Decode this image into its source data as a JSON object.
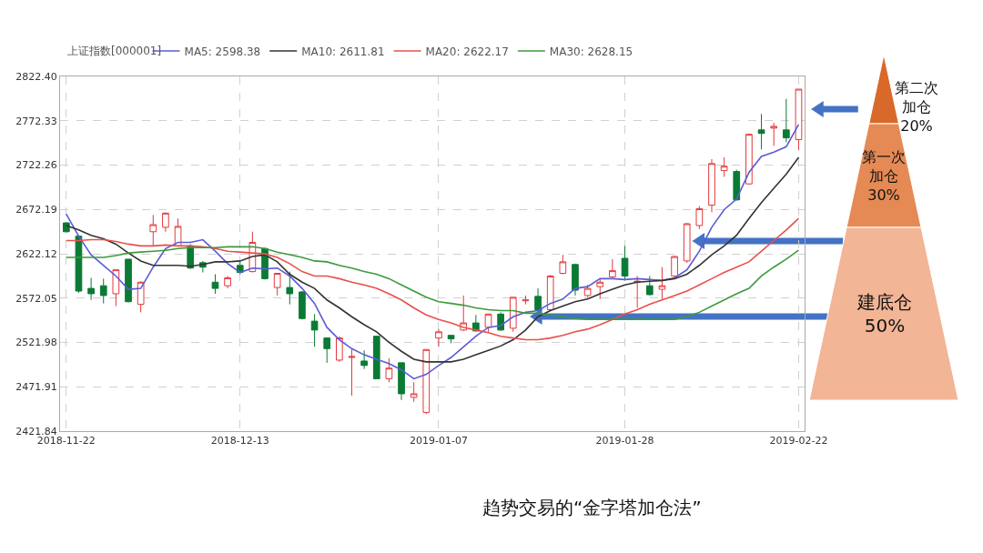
{
  "chart_data": [
    {
      "type": "candlestick",
      "title": "上证指数[000001]",
      "categories": [
        "2018-11-22",
        null,
        null,
        null,
        null,
        null,
        null,
        null,
        null,
        null,
        null,
        null,
        null,
        null,
        "2018-12-13",
        null,
        null,
        null,
        null,
        null,
        null,
        null,
        null,
        null,
        null,
        null,
        null,
        null,
        null,
        null,
        "2019-01-07",
        null,
        null,
        null,
        null,
        null,
        null,
        null,
        null,
        null,
        null,
        null,
        null,
        null,
        null,
        "2019-01-28",
        null,
        null,
        null,
        null,
        null,
        null,
        null,
        null,
        null,
        null,
        null,
        null,
        null,
        "2019-02-22"
      ],
      "ohlc": [
        [
          2657,
          2658,
          2646,
          2647
        ],
        [
          2642,
          2643,
          2578,
          2580
        ],
        [
          2583,
          2595,
          2570,
          2577
        ],
        [
          2586,
          2594,
          2566,
          2575
        ],
        [
          2577,
          2604,
          2563,
          2604
        ],
        [
          2616,
          2616,
          2567,
          2568
        ],
        [
          2565,
          2591,
          2556,
          2590
        ],
        [
          2647,
          2666,
          2631,
          2655
        ],
        [
          2652,
          2669,
          2647,
          2668
        ],
        [
          2631,
          2662,
          2631,
          2653
        ],
        [
          2631,
          2633,
          2605,
          2606
        ],
        [
          2612,
          2614,
          2601,
          2607
        ],
        [
          2590,
          2599,
          2577,
          2583
        ],
        [
          2586,
          2597,
          2583,
          2595
        ],
        [
          2609,
          2613,
          2599,
          2601
        ],
        [
          2602,
          2647,
          2601,
          2635
        ],
        [
          2628,
          2629,
          2593,
          2594
        ],
        [
          2584,
          2600,
          2575,
          2600
        ],
        [
          2584,
          2602,
          2565,
          2577
        ],
        [
          2579,
          2580,
          2548,
          2549
        ],
        [
          2546,
          2554,
          2517,
          2536
        ],
        [
          2527,
          2527,
          2499,
          2515
        ],
        [
          2502,
          2529,
          2500,
          2527
        ],
        [
          2505,
          2515,
          2462,
          2506
        ],
        [
          2501,
          2513,
          2492,
          2496
        ],
        [
          2529,
          2529,
          2481,
          2481
        ],
        [
          2481,
          2504,
          2477,
          2493
        ],
        [
          2499,
          2499,
          2457,
          2464
        ],
        [
          2460,
          2477,
          2455,
          2464
        ],
        [
          2443,
          2514,
          2441,
          2514
        ],
        [
          2527,
          2537,
          2517,
          2534
        ],
        [
          2530,
          2530,
          2521,
          2526
        ],
        [
          2536,
          2575,
          2535,
          2544
        ],
        [
          2544,
          2553,
          2534,
          2535
        ],
        [
          2539,
          2554,
          2534,
          2554
        ],
        [
          2554,
          2556,
          2535,
          2536
        ],
        [
          2538,
          2573,
          2534,
          2573
        ],
        [
          2569,
          2575,
          2565,
          2570
        ],
        [
          2574,
          2583,
          2559,
          2559
        ],
        [
          2559,
          2598,
          2559,
          2597
        ],
        [
          2600,
          2621,
          2599,
          2613
        ],
        [
          2610,
          2611,
          2575,
          2581
        ],
        [
          2575,
          2587,
          2573,
          2583
        ],
        [
          2585,
          2594,
          2571,
          2590
        ],
        [
          2596,
          2616,
          2594,
          2603
        ],
        [
          2617,
          2631,
          2592,
          2597
        ],
        [
          2590,
          2597,
          2561,
          2591
        ],
        [
          2586,
          2597,
          2575,
          2576
        ],
        [
          2582,
          2607,
          2571,
          2586
        ],
        [
          2597,
          2620,
          2596,
          2619
        ],
        [
          2614,
          2657,
          2612,
          2656
        ],
        [
          2654,
          2676,
          2650,
          2673
        ],
        [
          2677,
          2729,
          2669,
          2724
        ],
        [
          2716,
          2731,
          2709,
          2721
        ],
        [
          2715,
          2717,
          2682,
          2683
        ],
        [
          2701,
          2758,
          2700,
          2757
        ],
        [
          2762,
          2780,
          2740,
          2758
        ],
        [
          2764,
          2770,
          2744,
          2766
        ],
        [
          2762,
          2797,
          2748,
          2753
        ],
        [
          2751,
          2808,
          2739,
          2808
        ]
      ],
      "series": [
        {
          "name": "MA5: 2598.38",
          "type": "line",
          "color": "#5b5bd6",
          "values": [
            2667,
            2642,
            2621,
            2609,
            2597,
            2582,
            2583,
            2607,
            2628,
            2635,
            2635,
            2638,
            2625,
            2611,
            2601,
            2606,
            2605,
            2606,
            2597,
            2583,
            2566,
            2539,
            2525,
            2515,
            2508,
            2503,
            2498,
            2491,
            2481,
            2486,
            2496,
            2505,
            2517,
            2529,
            2539,
            2541,
            2551,
            2556,
            2558,
            2566,
            2571,
            2583,
            2585,
            2594,
            2594,
            2593,
            2594,
            2593,
            2592,
            2595,
            2604,
            2625,
            2652,
            2672,
            2684,
            2714,
            2732,
            2737,
            2743,
            2768
          ]
        },
        {
          "name": "MA10: 2611.81",
          "type": "line",
          "color": "#333333",
          "values": [
            2654,
            2649,
            2643,
            2639,
            2633,
            2623,
            2614,
            2609,
            2609,
            2609,
            2608,
            2610,
            2613,
            2613,
            2614,
            2619,
            2621,
            2613,
            2599,
            2590,
            2583,
            2570,
            2561,
            2551,
            2542,
            2534,
            2522,
            2512,
            2503,
            2500,
            2500,
            2500,
            2503,
            2508,
            2513,
            2518,
            2525,
            2536,
            2551,
            2558,
            2563,
            2568,
            2571,
            2577,
            2582,
            2587,
            2590,
            2591,
            2592,
            2594,
            2599,
            2609,
            2621,
            2631,
            2643,
            2662,
            2680,
            2696,
            2712,
            2731
          ]
        },
        {
          "name": "MA20: 2622.17",
          "type": "line",
          "color": "#e8504a",
          "values": [
            2637,
            2637,
            2638,
            2638,
            2636,
            2633,
            2631,
            2631,
            2632,
            2631,
            2631,
            2630,
            2628,
            2625,
            2624,
            2623,
            2622,
            2618,
            2611,
            2602,
            2597,
            2597,
            2594,
            2590,
            2587,
            2583,
            2577,
            2570,
            2561,
            2553,
            2548,
            2544,
            2539,
            2536,
            2533,
            2529,
            2527,
            2525,
            2525,
            2527,
            2530,
            2534,
            2537,
            2542,
            2548,
            2554,
            2559,
            2565,
            2570,
            2575,
            2580,
            2587,
            2594,
            2601,
            2607,
            2613,
            2625,
            2637,
            2649,
            2662
          ]
        },
        {
          "name": "MA30: 2628.15",
          "type": "line",
          "color": "#3c9a3c",
          "values": [
            2618,
            2618,
            2618,
            2618,
            2620,
            2623,
            2624,
            2625,
            2626,
            2628,
            2629,
            2629,
            2629,
            2630,
            2630,
            2630,
            2628,
            2624,
            2621,
            2618,
            2614,
            2613,
            2609,
            2606,
            2602,
            2599,
            2594,
            2587,
            2580,
            2573,
            2568,
            2566,
            2564,
            2561,
            2559,
            2558,
            2558,
            2555,
            2555,
            2553,
            2551,
            2549,
            2548,
            2548,
            2548,
            2548,
            2548,
            2548,
            2548,
            2548,
            2551,
            2556,
            2563,
            2570,
            2577,
            2583,
            2597,
            2607,
            2616,
            2626
          ]
        }
      ],
      "ylim": [
        2421.84,
        2822.4
      ],
      "yticks": [
        2421.84,
        2471.91,
        2521.98,
        2572.05,
        2622.12,
        2672.19,
        2722.26,
        2772.33,
        {
          "value": 2822.4,
          "label": "2822.40"
        }
      ],
      "grid": true,
      "legend": "top left",
      "annotations": [
        "趋势交易的“金字塔加仓法”"
      ]
    },
    {
      "type": "other",
      "categories": [
        "第二次加仓",
        "第一次加仓",
        "建底仓"
      ],
      "values": [
        20,
        30,
        50
      ],
      "value_labels": [
        "20%",
        "30%",
        "50%"
      ],
      "colors": [
        "#d8692a",
        "#e58a55",
        "#f2b595"
      ]
    }
  ]
}
